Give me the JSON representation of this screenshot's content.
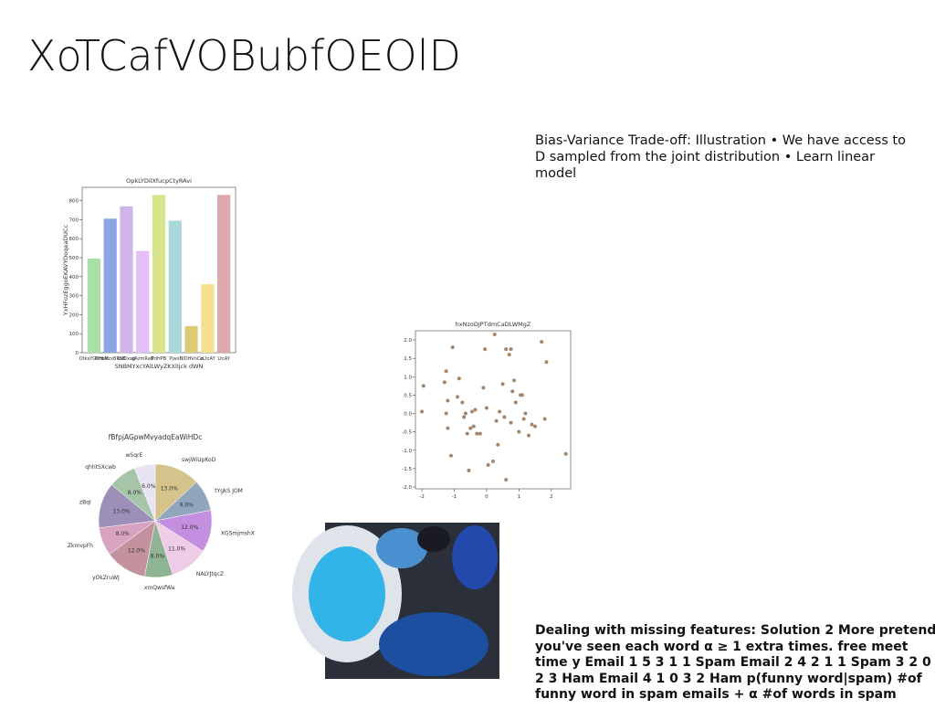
{
  "title": "XoTCafVOBubfOEOlD",
  "text_blocks": [
    "Bias-Variance Trade-off: Illustration • We have access to D sampled from the joint distribution • Learn linear model",
    "Dealing with missing features: Solution 2 More pretend you've seen each word α ≥ 1 extra times. free meet time y Email 1 5 3 1 1 Spam Email 2 4 2 1 1 Spam 3 2 0 2 3 Ham Email 4 1 0 3 2 Ham p(funny word|spam) #of funny word in spam emails + α #of words in spam"
  ],
  "chart_data": [
    {
      "type": "bar",
      "title": "OpkLYDilXfucpCtyRAvi",
      "x_label": "SNBMYxcYAlLWyZKXlIjck dWN",
      "y_label": "YxHFozEggoEKAVYOoqeaDUCc",
      "categories": [
        "DtksYGLfmM",
        "MHbXzxBRSB",
        "bxOxod",
        "gAzmRaB",
        "PdHPB",
        "Pjwsf",
        "NIDHVnCe",
        "eLtcAY",
        "LtcAY"
      ],
      "values": [
        495,
        705,
        770,
        535,
        830,
        695,
        140,
        360,
        830
      ],
      "colors": [
        "#a8e0a8",
        "#8aa4e4",
        "#d0b4e8",
        "#e4bef4",
        "#d8e48c",
        "#a8d8dc",
        "#dccc78",
        "#f4e090",
        "#dca8ac"
      ],
      "ylim": [
        0,
        870
      ],
      "yticks": [
        0,
        100,
        200,
        300,
        400,
        500,
        600,
        700,
        800
      ]
    },
    {
      "type": "scatter",
      "title": "hxNzoDJPTdmCaDLWMgZ",
      "color": "#a4866c",
      "x": [
        -2.0,
        -1.95,
        -1.3,
        -1.25,
        -1.2,
        -1.25,
        -1.2,
        -1.1,
        -1.05,
        -0.9,
        -0.85,
        -0.75,
        -0.7,
        -0.65,
        -0.6,
        -0.55,
        -0.5,
        -0.45,
        -0.4,
        -0.35,
        -0.3,
        -0.2,
        -0.1,
        -0.05,
        0.0,
        0.05,
        0.2,
        0.25,
        0.3,
        0.35,
        0.4,
        0.5,
        0.55,
        0.6,
        0.6,
        0.7,
        0.75,
        0.75,
        0.8,
        0.85,
        0.9,
        1.0,
        1.05,
        1.1,
        1.15,
        1.2,
        1.3,
        1.4,
        1.5,
        1.7,
        1.8,
        1.85,
        2.45
      ],
      "y": [
        0.05,
        0.75,
        0.85,
        1.15,
        0.35,
        0.0,
        -0.4,
        -1.15,
        1.8,
        0.45,
        0.95,
        0.3,
        -0.1,
        0.0,
        -0.55,
        -1.55,
        -0.4,
        0.05,
        -0.35,
        0.1,
        -0.55,
        -0.55,
        0.7,
        1.75,
        0.15,
        -1.4,
        -1.3,
        2.15,
        -0.2,
        -0.85,
        0.05,
        0.8,
        -0.1,
        1.75,
        -1.8,
        1.6,
        1.75,
        -0.25,
        0.6,
        0.9,
        0.3,
        -0.5,
        0.5,
        0.5,
        -0.15,
        0.0,
        -0.6,
        -0.3,
        -0.35,
        1.95,
        -0.15,
        1.4,
        -1.1
      ],
      "xlim": [
        -2.2,
        2.6
      ],
      "xticks": [
        -2,
        -1,
        0,
        1,
        2
      ],
      "ylim": [
        -2.05,
        2.25
      ],
      "yticks": [
        {
          "value": -2,
          "label": "-2.0"
        },
        -1.5,
        {
          "value": -1,
          "label": "-1.0"
        },
        -0.5,
        {
          "value": 0,
          "label": "0.0"
        },
        0.5,
        {
          "value": 1,
          "label": "1.0"
        },
        1.5,
        {
          "value": 2,
          "label": "2.0"
        }
      ]
    },
    {
      "type": "pie",
      "title": "fBfpjAGpwMvyadqEaWiHDc",
      "categories": [
        "swjWiUpKoD",
        "tYgkS JOM",
        "XGSmjmshX",
        "NALYJtqcZ",
        "xmQwsfWa",
        "yOkZruWJ",
        "ZkmvpFh",
        "zBql",
        "qhhtSXcwb",
        "wSqrE"
      ],
      "values": [
        13,
        9,
        12,
        11,
        8,
        12,
        8,
        13,
        8,
        6
      ],
      "value_labels": [
        "13.0%",
        "9.0%",
        "12.0%",
        "11.0%",
        "8.0%",
        "12.0%",
        "8.0%",
        "13.0%",
        "8.0%",
        "6.0%"
      ],
      "colors": [
        "#d4c38a",
        "#8fa6bd",
        "#c48fe0",
        "#eecbe6",
        "#8fb393",
        "#c4929e",
        "#d7a3c0",
        "#9c90b8",
        "#a5c4a8",
        "#e8e4f4"
      ]
    }
  ]
}
